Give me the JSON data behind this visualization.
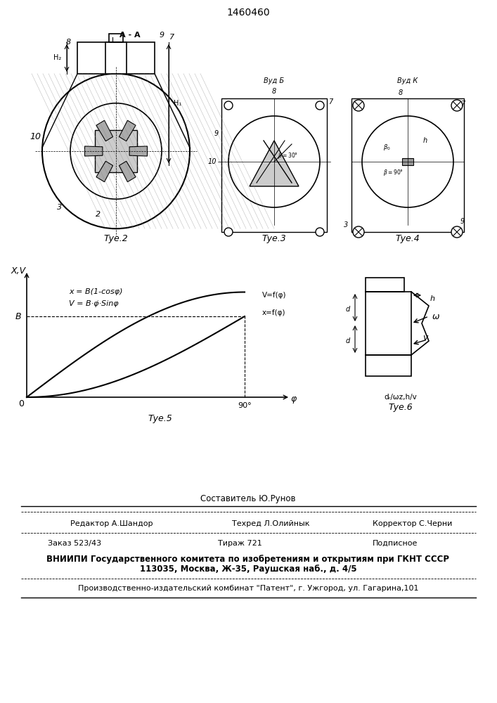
{
  "title": "1460460",
  "bg_color": "#ffffff",
  "line_color": "#000000",
  "fig2_caption": "Τуе.2",
  "fig3_caption": "Τуе.3",
  "fig4_caption": "Τуе.4",
  "fig5_caption": "Τуе.5",
  "fig6_caption": "Τуе.6",
  "formula1": "x = B(1-cosφ)",
  "formula2": "V = B·φ̇·Sinφ",
  "xlabel": "φ",
  "ylabel": "X,V",
  "label_B": "B",
  "label_0": "0",
  "label_90": "90°",
  "vfphi_label": "V=f(φ)",
  "xfphi_label": "x=f(φ)",
  "footer_line1": "Составитель Ю.Рунов",
  "footer_line2_left": "Редактор А.Шандор",
  "footer_line2_mid": "Техред Л.Олийнык",
  "footer_line2_right": "Корректор С.Черни",
  "footer_line3_left": "Заказ 523/43",
  "footer_line3_mid": "Тираж 721",
  "footer_line3_right": "Подписное",
  "footer_line4": "ВНИИПИ Государственного комитета по изобретениям и открытиям при ГКНТ СССР",
  "footer_line4b": "113035, Москва, Ж-35, Раушская наб., д. 4/5",
  "footer_line5": "Производственно-издательский комбинат \"Патент\", г. Ужгород, ул. Гагарина,101",
  "vidb_caption": "Вуд Б",
  "vidk_caption": "Вуд К",
  "fig6_params": "dᵣ/ωz,h/v",
  "AA_label": "A - A",
  "label_8": "8",
  "label_9": "9",
  "label_7": "7",
  "label_10": "10",
  "label_3": "3",
  "label_2": "2",
  "label_H2": "H₂",
  "label_H1": "H₁",
  "label_h": "h",
  "label_omega": "ω",
  "label_v": "v"
}
